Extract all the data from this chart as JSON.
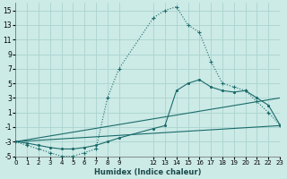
{
  "xlabel": "Humidex (Indice chaleur)",
  "background_color": "#cceae6",
  "grid_color": "#aad4d0",
  "line_color": "#1a6b6b",
  "xlim": [
    0,
    23
  ],
  "ylim": [
    -5,
    16
  ],
  "xticks": [
    0,
    1,
    2,
    3,
    4,
    5,
    6,
    7,
    8,
    9,
    12,
    13,
    14,
    15,
    16,
    17,
    18,
    19,
    20,
    21,
    22,
    23
  ],
  "xtick_labels": [
    "0",
    "1",
    "2",
    "3",
    "4",
    "5",
    "6",
    "7",
    "8",
    "9",
    "12",
    "13",
    "14",
    "15",
    "16",
    "17",
    "18",
    "19",
    "20",
    "21",
    "22",
    "23"
  ],
  "yticks": [
    -5,
    -3,
    -1,
    1,
    3,
    5,
    7,
    9,
    11,
    13,
    15
  ],
  "series1_x": [
    0,
    1,
    2,
    3,
    4,
    5,
    6,
    7,
    8,
    9,
    12,
    13,
    14,
    15,
    16,
    17,
    18,
    19,
    20,
    21,
    22,
    23
  ],
  "series1_y": [
    -3,
    -3.5,
    -4,
    -4.5,
    -5,
    -5,
    -4.5,
    -4,
    3,
    7,
    14,
    15,
    15.5,
    13,
    12,
    8,
    5,
    4.5,
    4,
    2.5,
    1,
    -0.7
  ],
  "series2_x": [
    0,
    1,
    2,
    3,
    4,
    5,
    6,
    7,
    8,
    9,
    12,
    13,
    14,
    15,
    16,
    17,
    18,
    19,
    20,
    21,
    22,
    23
  ],
  "series2_y": [
    -3,
    -3.2,
    -3.5,
    -3.8,
    -4,
    -4,
    -3.8,
    -3.5,
    -3,
    -2.5,
    -1.2,
    -0.8,
    4,
    5,
    5.5,
    4.5,
    4,
    3.8,
    4,
    3,
    2,
    -0.7
  ],
  "series3_x": [
    0,
    23
  ],
  "series3_y": [
    -3,
    3
  ],
  "series4_x": [
    0,
    23
  ],
  "series4_y": [
    -3,
    -0.8
  ]
}
